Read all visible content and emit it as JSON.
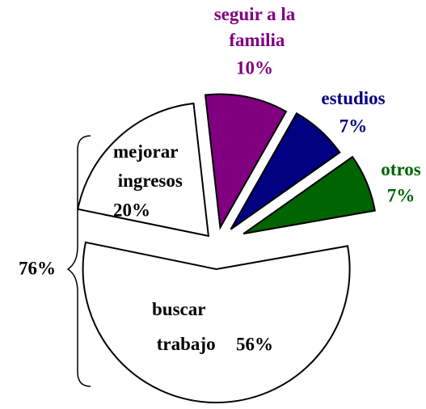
{
  "chart_data": {
    "type": "pie",
    "categories": [
      "buscar trabajo",
      "mejorar ingresos",
      "seguir a la familia",
      "estudios",
      "otros"
    ],
    "values": [
      56,
      20,
      10,
      7,
      7
    ],
    "value_labels": [
      "56%",
      "20%",
      "10%",
      "7%",
      "7%"
    ],
    "colors": [
      "#ffffff",
      "#ffffff",
      "#800080",
      "#000080",
      "#006400"
    ],
    "annotation": "76%"
  }
}
